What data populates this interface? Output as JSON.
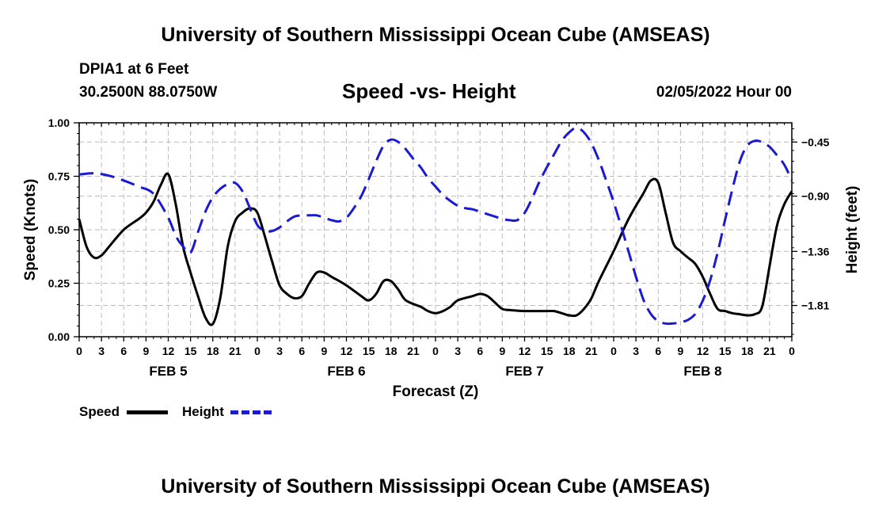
{
  "header": {
    "main_title": "University of Southern Mississippi Ocean Cube (AMSEAS)",
    "station": "DPIA1 at 6 Feet",
    "coords": "30.2500N  88.0750W",
    "subtitle": "Speed -vs- Height",
    "datetime": "02/05/2022 Hour 00"
  },
  "footer": {
    "main_title": "University of Southern Mississippi Ocean Cube (AMSEAS)"
  },
  "legend": {
    "speed_label": "Speed",
    "height_label": "Height"
  },
  "colors": {
    "speed": "#000000",
    "height": "#1a1ad0",
    "grid": "#bbbbbb"
  },
  "chart_data": {
    "type": "line",
    "title": "Speed -vs- Height",
    "xlabel": "Forecast (Z)",
    "ylabel": "Speed (Knots)",
    "y2label": "Height (feet)",
    "xlim": [
      0,
      96
    ],
    "ylim": [
      0,
      1
    ],
    "y2lim": [
      -2.07,
      -0.29
    ],
    "yticks": [
      0,
      0.25,
      0.5,
      0.75,
      1
    ],
    "ytick_labels": [
      "0.00",
      "0.25",
      "0.50",
      "0.75",
      "1.00"
    ],
    "y2ticks": [
      -0.45,
      -0.9,
      -1.36,
      -1.81
    ],
    "y2tick_labels": [
      "−0.45",
      "−0.90",
      "−1.36",
      "−1.81"
    ],
    "xtick_hours": [
      0,
      3,
      6,
      9,
      12,
      15,
      18,
      21,
      24,
      27,
      30,
      33,
      36,
      39,
      42,
      45,
      48,
      51,
      54,
      57,
      60,
      63,
      66,
      69,
      72,
      75,
      78,
      81,
      84,
      87,
      90,
      93,
      96
    ],
    "xtick_labels": [
      "0",
      "3",
      "6",
      "9",
      "12",
      "15",
      "18",
      "21",
      "0",
      "3",
      "6",
      "9",
      "12",
      "15",
      "18",
      "21",
      "0",
      "3",
      "6",
      "9",
      "12",
      "15",
      "18",
      "21",
      "0",
      "3",
      "6",
      "9",
      "12",
      "15",
      "18",
      "21",
      "0"
    ],
    "day_labels": [
      {
        "hour": 12,
        "label": "FEB 5"
      },
      {
        "hour": 36,
        "label": "FEB 6"
      },
      {
        "hour": 60,
        "label": "FEB 7"
      },
      {
        "hour": 84,
        "label": "FEB 8"
      }
    ],
    "series": [
      {
        "name": "Speed",
        "axis": "left",
        "style": "solid",
        "points": [
          [
            0,
            0.55
          ],
          [
            1,
            0.42
          ],
          [
            2,
            0.37
          ],
          [
            3,
            0.38
          ],
          [
            4,
            0.42
          ],
          [
            6,
            0.5
          ],
          [
            8,
            0.55
          ],
          [
            9,
            0.58
          ],
          [
            10,
            0.63
          ],
          [
            11,
            0.71
          ],
          [
            12,
            0.76
          ],
          [
            13,
            0.62
          ],
          [
            14,
            0.42
          ],
          [
            15,
            0.3
          ],
          [
            16,
            0.19
          ],
          [
            17,
            0.09
          ],
          [
            18,
            0.06
          ],
          [
            19,
            0.18
          ],
          [
            20,
            0.42
          ],
          [
            21,
            0.54
          ],
          [
            22,
            0.58
          ],
          [
            23,
            0.6
          ],
          [
            24,
            0.58
          ],
          [
            25,
            0.47
          ],
          [
            26,
            0.35
          ],
          [
            27,
            0.24
          ],
          [
            28,
            0.2
          ],
          [
            29,
            0.18
          ],
          [
            30,
            0.19
          ],
          [
            31,
            0.25
          ],
          [
            32,
            0.3
          ],
          [
            33,
            0.3
          ],
          [
            34,
            0.28
          ],
          [
            36,
            0.24
          ],
          [
            38,
            0.19
          ],
          [
            39,
            0.17
          ],
          [
            40,
            0.2
          ],
          [
            41,
            0.26
          ],
          [
            42,
            0.26
          ],
          [
            43,
            0.22
          ],
          [
            44,
            0.17
          ],
          [
            46,
            0.14
          ],
          [
            47,
            0.12
          ],
          [
            48,
            0.11
          ],
          [
            49,
            0.12
          ],
          [
            50,
            0.14
          ],
          [
            51,
            0.17
          ],
          [
            53,
            0.19
          ],
          [
            54,
            0.2
          ],
          [
            55,
            0.19
          ],
          [
            56,
            0.16
          ],
          [
            57,
            0.13
          ],
          [
            58,
            0.125
          ],
          [
            60,
            0.12
          ],
          [
            62,
            0.12
          ],
          [
            63,
            0.12
          ],
          [
            64,
            0.12
          ],
          [
            65,
            0.11
          ],
          [
            66,
            0.1
          ],
          [
            67,
            0.1
          ],
          [
            68,
            0.13
          ],
          [
            69,
            0.18
          ],
          [
            70,
            0.26
          ],
          [
            72,
            0.4
          ],
          [
            74,
            0.55
          ],
          [
            76,
            0.67
          ],
          [
            77,
            0.73
          ],
          [
            78,
            0.72
          ],
          [
            79,
            0.58
          ],
          [
            80,
            0.44
          ],
          [
            81,
            0.4
          ],
          [
            82,
            0.37
          ],
          [
            83,
            0.34
          ],
          [
            84,
            0.28
          ],
          [
            85,
            0.2
          ],
          [
            86,
            0.13
          ],
          [
            87,
            0.12
          ],
          [
            88,
            0.11
          ],
          [
            89,
            0.105
          ],
          [
            90,
            0.1
          ],
          [
            91,
            0.105
          ],
          [
            92,
            0.14
          ],
          [
            93,
            0.33
          ],
          [
            94,
            0.52
          ],
          [
            95,
            0.62
          ],
          [
            96,
            0.68
          ]
        ]
      },
      {
        "name": "Height",
        "axis": "right",
        "style": "dashed",
        "points": [
          [
            0,
            -0.72
          ],
          [
            2,
            -0.71
          ],
          [
            4,
            -0.73
          ],
          [
            6,
            -0.77
          ],
          [
            8,
            -0.82
          ],
          [
            10,
            -0.88
          ],
          [
            12,
            -1.08
          ],
          [
            13,
            -1.23
          ],
          [
            14,
            -1.32
          ],
          [
            15,
            -1.37
          ],
          [
            16,
            -1.2
          ],
          [
            17,
            -1.03
          ],
          [
            18,
            -0.91
          ],
          [
            19,
            -0.84
          ],
          [
            20,
            -0.8
          ],
          [
            21,
            -0.79
          ],
          [
            22,
            -0.86
          ],
          [
            23,
            -1.0
          ],
          [
            24,
            -1.14
          ],
          [
            25,
            -1.19
          ],
          [
            26,
            -1.19
          ],
          [
            27,
            -1.16
          ],
          [
            28,
            -1.11
          ],
          [
            29,
            -1.07
          ],
          [
            30,
            -1.06
          ],
          [
            31,
            -1.06
          ],
          [
            32,
            -1.06
          ],
          [
            33,
            -1.08
          ],
          [
            34,
            -1.1
          ],
          [
            35,
            -1.11
          ],
          [
            36,
            -1.08
          ],
          [
            37,
            -1.0
          ],
          [
            38,
            -0.9
          ],
          [
            39,
            -0.76
          ],
          [
            40,
            -0.61
          ],
          [
            41,
            -0.48
          ],
          [
            42,
            -0.43
          ],
          [
            43,
            -0.45
          ],
          [
            44,
            -0.51
          ],
          [
            45,
            -0.59
          ],
          [
            46,
            -0.66
          ],
          [
            47,
            -0.75
          ],
          [
            48,
            -0.82
          ],
          [
            49,
            -0.89
          ],
          [
            50,
            -0.94
          ],
          [
            51,
            -0.98
          ],
          [
            52,
            -1.0
          ],
          [
            53,
            -1.01
          ],
          [
            54,
            -1.03
          ],
          [
            55,
            -1.05
          ],
          [
            56,
            -1.07
          ],
          [
            57,
            -1.09
          ],
          [
            58,
            -1.1
          ],
          [
            59,
            -1.1
          ],
          [
            60,
            -1.04
          ],
          [
            61,
            -0.92
          ],
          [
            62,
            -0.78
          ],
          [
            63,
            -0.66
          ],
          [
            64,
            -0.55
          ],
          [
            65,
            -0.44
          ],
          [
            66,
            -0.37
          ],
          [
            67,
            -0.33
          ],
          [
            68,
            -0.37
          ],
          [
            69,
            -0.46
          ],
          [
            70,
            -0.6
          ],
          [
            71,
            -0.77
          ],
          [
            72,
            -0.95
          ],
          [
            73,
            -1.15
          ],
          [
            74,
            -1.36
          ],
          [
            75,
            -1.57
          ],
          [
            76,
            -1.76
          ],
          [
            77,
            -1.88
          ],
          [
            78,
            -1.94
          ],
          [
            79,
            -1.96
          ],
          [
            80,
            -1.96
          ],
          [
            81,
            -1.95
          ],
          [
            82,
            -1.93
          ],
          [
            83,
            -1.88
          ],
          [
            84,
            -1.77
          ],
          [
            85,
            -1.6
          ],
          [
            86,
            -1.37
          ],
          [
            87,
            -1.1
          ],
          [
            88,
            -0.84
          ],
          [
            89,
            -0.61
          ],
          [
            90,
            -0.48
          ],
          [
            91,
            -0.44
          ],
          [
            92,
            -0.45
          ],
          [
            93,
            -0.49
          ],
          [
            94,
            -0.56
          ],
          [
            95,
            -0.64
          ],
          [
            96,
            -0.77
          ]
        ]
      }
    ]
  }
}
